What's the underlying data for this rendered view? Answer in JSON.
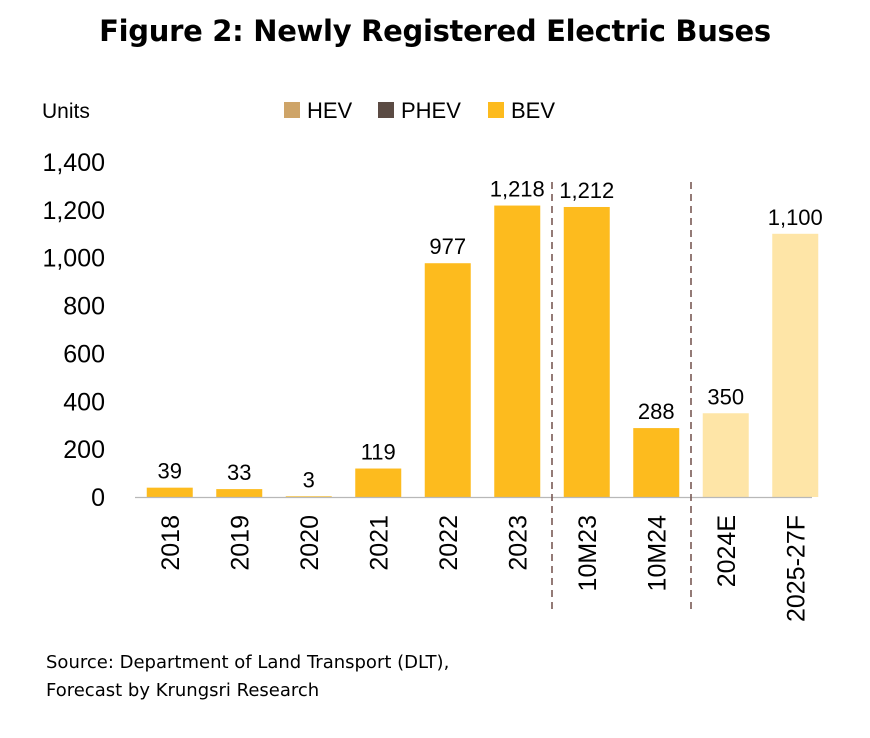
{
  "chart_data": {
    "type": "bar",
    "title": "Figure 2: Newly Registered Electric Buses",
    "ylabel": "Units",
    "ylim": [
      0,
      1400
    ],
    "yticks": [
      0,
      200,
      400,
      600,
      800,
      1000,
      1200,
      1400
    ],
    "ytick_labels": [
      "0",
      "200",
      "400",
      "600",
      "800",
      "1,000",
      "1,200",
      "1,400"
    ],
    "grid": false,
    "legend_position": "top",
    "legend": [
      {
        "name": "HEV",
        "color": "#CEA468"
      },
      {
        "name": "PHEV",
        "color": "#5B4B44"
      },
      {
        "name": "BEV",
        "color": "#FDBB1E"
      }
    ],
    "categories": [
      "2018",
      "2019",
      "2020",
      "2021",
      "2022",
      "2023",
      "10M23",
      "10M24",
      "2024E",
      "2025-27F"
    ],
    "series": [
      {
        "name": "BEV",
        "values": [
          39,
          33,
          3,
          119,
          977,
          1218,
          1212,
          288,
          350,
          1100
        ],
        "labels": [
          "39",
          "33",
          "3",
          "119",
          "977",
          "1,218",
          "1,212",
          "288",
          "350",
          "1,100"
        ]
      }
    ],
    "forecast_color": "#FEE5A7",
    "forecast_categories": [
      "2024E",
      "2025-27F"
    ],
    "separators_after": [
      "2023",
      "10M24"
    ]
  },
  "source_line1": "Source: Department of Land Transport (DLT),",
  "source_line2": "Forecast by Krungsri Research"
}
